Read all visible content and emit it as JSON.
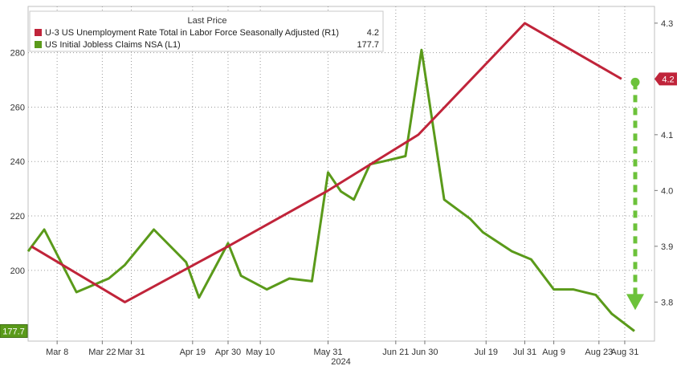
{
  "chart_data": {
    "type": "line",
    "legend": {
      "header": "Last Price",
      "placement": "top-left",
      "entries": [
        {
          "label": "U-3 US Unemployment Rate Total in Labor Force Seasonally Adjusted  (R1)",
          "value": "4.2",
          "color": "#c0243a"
        },
        {
          "label": "US Initial Jobless Claims NSA  (L1)",
          "value": "177.7",
          "color": "#5a9a1a"
        }
      ]
    },
    "x_axis": {
      "ticks": [
        "Mar 8",
        "Mar 22",
        "Mar 31",
        "Apr 19",
        "Apr 30",
        "May 10",
        "May 31",
        "Jun 21",
        "Jun 30",
        "Jul 19",
        "Jul 31",
        "Aug 9",
        "Aug 23",
        "Aug 31"
      ],
      "year_label": "2024"
    },
    "y_left": {
      "ticks": [
        "200",
        "220",
        "240",
        "260",
        "280"
      ],
      "range": [
        174,
        297
      ],
      "end_label": "177.7"
    },
    "y_right": {
      "ticks": [
        "3.8",
        "3.9",
        "4.0",
        "4.1",
        "4.2",
        "4.3"
      ],
      "range": [
        3.73,
        4.33
      ],
      "end_label": "4.2"
    },
    "grid": true,
    "series": [
      {
        "name": "US Initial Jobless Claims NSA",
        "axis": "left",
        "color": "#5a9a1a",
        "x": [
          "Feb 28",
          "Mar 4",
          "Mar 14",
          "Mar 24",
          "Mar 29",
          "Apr 7",
          "Apr 17",
          "Apr 21",
          "Apr 30",
          "May 4",
          "May 12",
          "May 19",
          "May 26",
          "May 31",
          "Jun 4",
          "Jun 8",
          "Jun 13",
          "Jun 17",
          "Jun 24",
          "Jun 29",
          "Jul 6",
          "Jul 14",
          "Jul 18",
          "Jul 27",
          "Aug 2",
          "Aug 9",
          "Aug 15",
          "Aug 22",
          "Aug 27",
          "Sep 3"
        ],
        "values": [
          207,
          215,
          192,
          197,
          202,
          215,
          203,
          190,
          210,
          198,
          193,
          197,
          196,
          236,
          229,
          226,
          239,
          240,
          242,
          281,
          226,
          219,
          214,
          207,
          204,
          193,
          193,
          191,
          184,
          177.7
        ]
      },
      {
        "name": "U-3 US Unemployment Rate Total in Labor Force Seasonally Adjusted",
        "axis": "right",
        "color": "#c0243a",
        "x": [
          "Feb 29",
          "Mar 29",
          "Apr 30",
          "May 31",
          "Jun 28",
          "Jul 31",
          "Aug 30"
        ],
        "values": [
          3.9,
          3.8,
          3.9,
          4.0,
          4.1,
          4.3,
          4.2
        ]
      }
    ],
    "annotation": {
      "type": "arrow",
      "color": "#6cc23a",
      "from_value": 4.2,
      "to_value": 3.8,
      "axis": "right",
      "style": "dashed"
    }
  }
}
